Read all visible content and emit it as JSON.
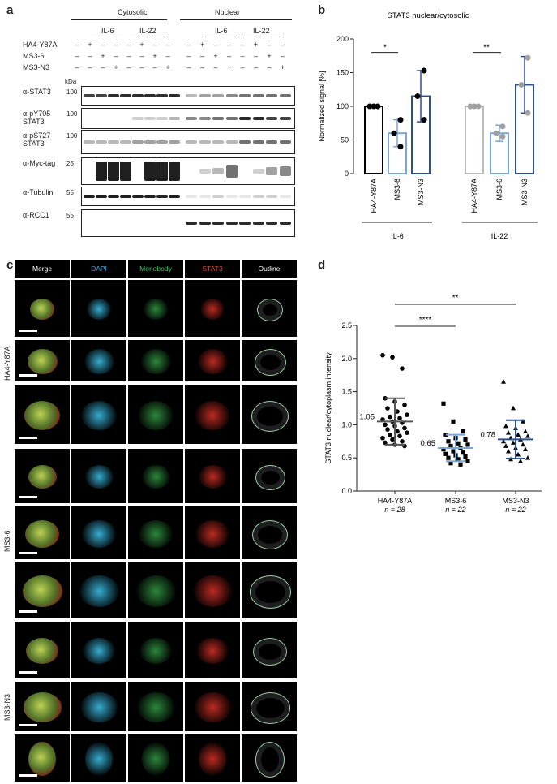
{
  "panels": {
    "a": "a",
    "b": "b",
    "c": "c",
    "d": "d"
  },
  "blot": {
    "fraction_labels": {
      "cytosolic": "Cytosolic",
      "nuclear": "Nuclear"
    },
    "stimulus_labels": {
      "il6": "IL-6",
      "il22": "IL-22"
    },
    "row_labels": {
      "ha4": "HA4-Y87A",
      "ms36": "MS3-6",
      "ms3n3": "MS3-N3"
    },
    "kda": "kDa",
    "antibodies": [
      {
        "name": "α-STAT3",
        "mw": "100"
      },
      {
        "name": "α-pY705\nSTAT3",
        "mw": "100"
      },
      {
        "name": "α-pS727\nSTAT3",
        "mw": "100"
      },
      {
        "name": "α-Myc-tag",
        "mw": "25"
      },
      {
        "name": "α-Tubulin",
        "mw": "55"
      },
      {
        "name": "α-RCC1",
        "mw": "55"
      }
    ],
    "cond_matrix": [
      [
        "–",
        "+",
        "–",
        "–",
        "–",
        "+",
        "–",
        "–",
        "–",
        "+",
        "–",
        "–",
        "–",
        "+",
        "–",
        "–"
      ],
      [
        "–",
        "–",
        "+",
        "–",
        "–",
        "–",
        "+",
        "–",
        "–",
        "–",
        "+",
        "–",
        "–",
        "–",
        "+",
        "–"
      ],
      [
        "–",
        "–",
        "–",
        "+",
        "–",
        "–",
        "–",
        "+",
        "–",
        "–",
        "–",
        "+",
        "–",
        "–",
        "–",
        "+"
      ]
    ]
  },
  "bar_chart": {
    "title": "STAT3 nuclear/cytosolic",
    "ylabel": "Normalized signal [%]",
    "yticks": [
      "0",
      "50",
      "100",
      "150",
      "200"
    ],
    "ylim": [
      0,
      200
    ],
    "categories": [
      "HA4-Y87A",
      "MS3-6",
      "MS3-N3",
      "HA4-Y87A",
      "MS3-6",
      "MS3-N3"
    ],
    "groups": [
      "IL-6",
      "IL-22"
    ],
    "values": [
      100,
      60,
      115,
      100,
      60,
      132
    ],
    "errors": [
      0,
      20,
      38,
      0,
      12,
      42
    ],
    "points": [
      [
        100,
        100,
        100
      ],
      [
        80,
        60,
        40
      ],
      [
        153,
        115,
        80
      ],
      [
        100,
        100,
        100
      ],
      [
        70,
        60,
        55
      ],
      [
        172,
        132,
        90
      ]
    ],
    "sig": [
      "*",
      "**"
    ],
    "colors": [
      "#000000",
      "#7aa6d6",
      "#2d4f8a",
      "#a0a0a0",
      "#a0a0a0",
      "#a0a0a0"
    ]
  },
  "micro": {
    "headers": [
      "Merge",
      "DAPI",
      "Monobody",
      "STAT3",
      "Outline"
    ],
    "header_colors": [
      "#ffffff",
      "#3fb4e6",
      "#3fbf5f",
      "#e8432c",
      "#ffffff"
    ],
    "groups": [
      "HA4-Y87A",
      "MS3-6",
      "MS3-N3"
    ]
  },
  "scatter": {
    "ylabel": "STAT3 nuclear/cytoplasm intensity",
    "yticks": [
      "0.0",
      "0.5",
      "1.0",
      "1.5",
      "2.0",
      "2.5"
    ],
    "ylim": [
      0,
      2.5
    ],
    "categories": [
      "HA4-Y87A",
      "MS3-6",
      "MS3-N3"
    ],
    "n_labels": [
      "n = 28",
      "n = 22",
      "n = 22"
    ],
    "means": [
      1.05,
      0.65,
      0.78
    ],
    "mean_labels": [
      "1.05",
      "0.65",
      "0.78"
    ],
    "sd": [
      0.35,
      0.2,
      0.29
    ],
    "sig": [
      "****",
      "**"
    ],
    "mean_colors": [
      "#555555",
      "#7aa6d6",
      "#2d4f8a"
    ],
    "points": [
      [
        2.05,
        2.02,
        1.85,
        1.4,
        1.35,
        1.3,
        1.25,
        1.2,
        1.15,
        1.12,
        1.1,
        1.08,
        1.05,
        1.03,
        1.0,
        0.98,
        0.95,
        0.93,
        0.9,
        0.88,
        0.85,
        0.83,
        0.8,
        0.78,
        0.75,
        0.73,
        0.7,
        0.68
      ],
      [
        1.32,
        1.05,
        0.9,
        0.85,
        0.8,
        0.78,
        0.75,
        0.72,
        0.7,
        0.68,
        0.65,
        0.63,
        0.6,
        0.58,
        0.56,
        0.54,
        0.52,
        0.5,
        0.48,
        0.45,
        0.42,
        0.4
      ],
      [
        1.65,
        1.25,
        1.05,
        0.98,
        0.95,
        0.9,
        0.88,
        0.85,
        0.83,
        0.8,
        0.78,
        0.75,
        0.73,
        0.7,
        0.68,
        0.65,
        0.63,
        0.6,
        0.55,
        0.5,
        0.48,
        0.45
      ]
    ]
  }
}
